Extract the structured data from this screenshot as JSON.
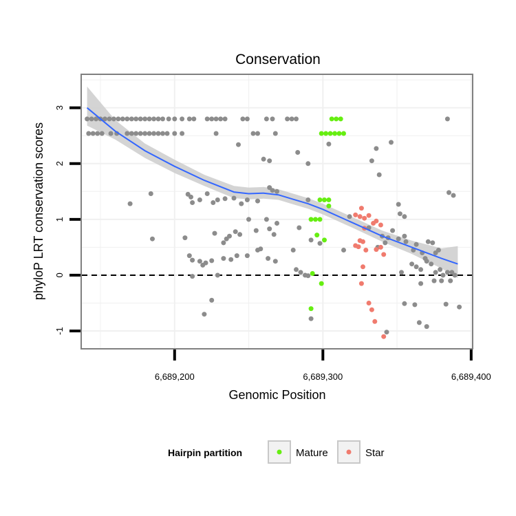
{
  "chart_data": {
    "type": "scatter",
    "title": "Conservation",
    "xlabel": "Genomic Position",
    "ylabel": "phyloP LRT conservation scores",
    "xlim": [
      6689137,
      6689401
    ],
    "ylim": [
      -1.32,
      3.6
    ],
    "x_ticks": [
      6689200,
      6689300,
      6689400
    ],
    "x_tick_labels": [
      "6,689,200",
      "6,689,300",
      "6,689,400"
    ],
    "y_ticks": [
      -1,
      0,
      1,
      2,
      3
    ],
    "y_tick_labels": [
      "-1",
      "0",
      "1",
      "2",
      "3"
    ],
    "reference_line": {
      "y": 0,
      "style": "dashed"
    },
    "grid": true,
    "legend": {
      "title": "Hairpin partition",
      "position": "bottom",
      "entries": [
        {
          "label": "Mature",
          "color": "#66ee11"
        },
        {
          "label": "Star",
          "color": "#f07b6e"
        }
      ]
    },
    "colors": {
      "other": "#8c8c8c",
      "Mature": "#66ee11",
      "Star": "#f07b6e",
      "smooth": "#3366ff",
      "ribbon": "#cccccc"
    },
    "smooth": {
      "x": [
        6689141,
        6689160,
        6689180,
        6689200,
        6689220,
        6689240,
        6689250,
        6689260,
        6689270,
        6689280,
        6689290,
        6689300,
        6689320,
        6689340,
        6689360,
        6689380,
        6689391
      ],
      "y": [
        3.0,
        2.58,
        2.23,
        1.95,
        1.7,
        1.49,
        1.46,
        1.47,
        1.44,
        1.36,
        1.28,
        1.18,
        0.94,
        0.7,
        0.5,
        0.3,
        0.2
      ],
      "lower": [
        2.68,
        2.43,
        2.1,
        1.83,
        1.6,
        1.38,
        1.36,
        1.37,
        1.35,
        1.27,
        1.19,
        1.09,
        0.85,
        0.6,
        0.38,
        0.12,
        -0.05
      ],
      "upper": [
        3.38,
        2.78,
        2.36,
        2.07,
        1.8,
        1.6,
        1.57,
        1.58,
        1.54,
        1.46,
        1.38,
        1.28,
        1.04,
        0.8,
        0.62,
        0.48,
        0.52
      ]
    },
    "series": [
      {
        "name": "",
        "points": [
          [
            6689141,
            2.8
          ],
          [
            6689144,
            2.8
          ],
          [
            6689147,
            2.8
          ],
          [
            6689150,
            2.8
          ],
          [
            6689153,
            2.8
          ],
          [
            6689156,
            2.8
          ],
          [
            6689159,
            2.8
          ],
          [
            6689162,
            2.8
          ],
          [
            6689165,
            2.8
          ],
          [
            6689168,
            2.8
          ],
          [
            6689171,
            2.8
          ],
          [
            6689174,
            2.8
          ],
          [
            6689177,
            2.8
          ],
          [
            6689180,
            2.8
          ],
          [
            6689183,
            2.8
          ],
          [
            6689186,
            2.8
          ],
          [
            6689189,
            2.8
          ],
          [
            6689192,
            2.8
          ],
          [
            6689196,
            2.8
          ],
          [
            6689200,
            2.8
          ],
          [
            6689205,
            2.8
          ],
          [
            6689210,
            2.8
          ],
          [
            6689213,
            2.8
          ],
          [
            6689222,
            2.8
          ],
          [
            6689225,
            2.8
          ],
          [
            6689228,
            2.8
          ],
          [
            6689231,
            2.8
          ],
          [
            6689234,
            2.8
          ],
          [
            6689246,
            2.8
          ],
          [
            6689249,
            2.8
          ],
          [
            6689262,
            2.8
          ],
          [
            6689266,
            2.8
          ],
          [
            6689276,
            2.8
          ],
          [
            6689279,
            2.8
          ],
          [
            6689282,
            2.8
          ],
          [
            6689142,
            2.54
          ],
          [
            6689145,
            2.54
          ],
          [
            6689148,
            2.54
          ],
          [
            6689151,
            2.54
          ],
          [
            6689157,
            2.54
          ],
          [
            6689161,
            2.54
          ],
          [
            6689168,
            2.54
          ],
          [
            6689171,
            2.54
          ],
          [
            6689174,
            2.54
          ],
          [
            6689177,
            2.54
          ],
          [
            6689180,
            2.54
          ],
          [
            6689183,
            2.54
          ],
          [
            6689186,
            2.54
          ],
          [
            6689189,
            2.54
          ],
          [
            6689192,
            2.54
          ],
          [
            6689195,
            2.54
          ],
          [
            6689200,
            2.54
          ],
          [
            6689205,
            2.54
          ],
          [
            6689228,
            2.54
          ],
          [
            6689253,
            2.54
          ],
          [
            6689256,
            2.54
          ],
          [
            6689268,
            2.54
          ],
          [
            6689243,
            2.34
          ],
          [
            6689260,
            2.08
          ],
          [
            6689264,
            2.05
          ],
          [
            6689283,
            2.2
          ],
          [
            6689290,
            2.0
          ],
          [
            6689304,
            2.35
          ],
          [
            6689333,
            2.05
          ],
          [
            6689336,
            2.27
          ],
          [
            6689346,
            2.38
          ],
          [
            6689338,
            1.8
          ],
          [
            6689384,
            2.8
          ],
          [
            6689170,
            1.28
          ],
          [
            6689184,
            1.46
          ],
          [
            6689209,
            1.45
          ],
          [
            6689212,
            1.3
          ],
          [
            6689211,
            1.4
          ],
          [
            6689217,
            1.35
          ],
          [
            6689222,
            1.46
          ],
          [
            6689226,
            1.3
          ],
          [
            6689229,
            1.35
          ],
          [
            6689234,
            1.37
          ],
          [
            6689240,
            1.38
          ],
          [
            6689245,
            1.28
          ],
          [
            6689249,
            1.35
          ],
          [
            6689256,
            1.33
          ],
          [
            6689264,
            1.57
          ],
          [
            6689269,
            1.5
          ],
          [
            6689266,
            1.52
          ],
          [
            6689290,
            1.35
          ],
          [
            6689318,
            1.05
          ],
          [
            6689351,
            1.27
          ],
          [
            6689352,
            1.1
          ],
          [
            6689355,
            1.05
          ],
          [
            6689385,
            1.48
          ],
          [
            6689388,
            1.43
          ],
          [
            6689185,
            0.65
          ],
          [
            6689207,
            0.67
          ],
          [
            6689227,
            0.75
          ],
          [
            6689235,
            0.65
          ],
          [
            6689237,
            0.7
          ],
          [
            6689233,
            0.58
          ],
          [
            6689241,
            0.78
          ],
          [
            6689244,
            0.73
          ],
          [
            6689250,
            1.0
          ],
          [
            6689255,
            0.8
          ],
          [
            6689258,
            0.47
          ],
          [
            6689262,
            1.0
          ],
          [
            6689264,
            0.83
          ],
          [
            6689267,
            0.73
          ],
          [
            6689269,
            0.93
          ],
          [
            6689280,
            0.45
          ],
          [
            6689284,
            0.85
          ],
          [
            6689292,
            0.63
          ],
          [
            6689298,
            0.57
          ],
          [
            6689314,
            0.45
          ],
          [
            6689331,
            0.85
          ],
          [
            6689337,
            0.5
          ],
          [
            6689340,
            0.7
          ],
          [
            6689342,
            0.58
          ],
          [
            6689344,
            0.67
          ],
          [
            6689347,
            0.8
          ],
          [
            6689351,
            0.65
          ],
          [
            6689355,
            0.7
          ],
          [
            6689356,
            0.6
          ],
          [
            6689361,
            0.45
          ],
          [
            6689363,
            0.55
          ],
          [
            6689367,
            0.4
          ],
          [
            6689369,
            0.3
          ],
          [
            6689371,
            0.6
          ],
          [
            6689374,
            0.58
          ],
          [
            6689376,
            0.4
          ],
          [
            6689378,
            0.45
          ],
          [
            6689210,
            0.35
          ],
          [
            6689212,
            0.27
          ],
          [
            6689217,
            0.25
          ],
          [
            6689219,
            0.18
          ],
          [
            6689221,
            0.22
          ],
          [
            6689225,
            0.26
          ],
          [
            6689233,
            0.3
          ],
          [
            6689238,
            0.28
          ],
          [
            6689242,
            0.35
          ],
          [
            6689249,
            0.35
          ],
          [
            6689256,
            0.45
          ],
          [
            6689263,
            0.3
          ],
          [
            6689268,
            0.25
          ],
          [
            6689282,
            0.1
          ],
          [
            6689285,
            0.05
          ],
          [
            6689353,
            0.05
          ],
          [
            6689360,
            0.2
          ],
          [
            6689363,
            0.15
          ],
          [
            6689366,
            0.1
          ],
          [
            6689370,
            0.25
          ],
          [
            6689373,
            0.2
          ],
          [
            6689376,
            0.05
          ],
          [
            6689379,
            0.1
          ],
          [
            6689381,
            0.0
          ],
          [
            6689384,
            0.05
          ],
          [
            6689387,
            0.05
          ],
          [
            6689212,
            -0.02
          ],
          [
            6689229,
            0.0
          ],
          [
            6689288,
            0.0
          ],
          [
            6689290,
            -0.01
          ],
          [
            6689375,
            -0.1
          ],
          [
            6689380,
            -0.1
          ],
          [
            6689386,
            -0.1
          ],
          [
            6689389,
            0.0
          ],
          [
            6689366,
            -0.15
          ],
          [
            6689225,
            -0.45
          ],
          [
            6689220,
            -0.7
          ],
          [
            6689292,
            -0.78
          ],
          [
            6689355,
            -0.51
          ],
          [
            6689362,
            -0.53
          ],
          [
            6689383,
            -0.52
          ],
          [
            6689392,
            -0.57
          ],
          [
            6689365,
            -0.85
          ],
          [
            6689370,
            -0.92
          ],
          [
            6689343,
            -1.02
          ]
        ]
      },
      {
        "name": "Mature",
        "points": [
          [
            6689306,
            2.8
          ],
          [
            6689309,
            2.8
          ],
          [
            6689312,
            2.8
          ],
          [
            6689299,
            2.54
          ],
          [
            6689302,
            2.54
          ],
          [
            6689305,
            2.54
          ],
          [
            6689308,
            2.54
          ],
          [
            6689311,
            2.54
          ],
          [
            6689314,
            2.54
          ],
          [
            6689298,
            1.35
          ],
          [
            6689301,
            1.35
          ],
          [
            6689304,
            1.35
          ],
          [
            6689304,
            1.24
          ],
          [
            6689292,
            1.0
          ],
          [
            6689295,
            1.0
          ],
          [
            6689298,
            1.0
          ],
          [
            6689296,
            0.72
          ],
          [
            6689301,
            0.63
          ],
          [
            6689293,
            0.03
          ],
          [
            6689299,
            -0.15
          ],
          [
            6689292,
            -0.6
          ]
        ]
      },
      {
        "name": "Star",
        "points": [
          [
            6689326,
            1.2
          ],
          [
            6689322,
            1.08
          ],
          [
            6689325,
            1.05
          ],
          [
            6689328,
            1.02
          ],
          [
            6689331,
            1.07
          ],
          [
            6689334,
            0.93
          ],
          [
            6689336,
            0.97
          ],
          [
            6689339,
            0.9
          ],
          [
            6689328,
            0.84
          ],
          [
            6689327,
            0.6
          ],
          [
            6689322,
            0.53
          ],
          [
            6689324,
            0.51
          ],
          [
            6689325,
            0.62
          ],
          [
            6689329,
            0.45
          ],
          [
            6689336,
            0.46
          ],
          [
            6689339,
            0.5
          ],
          [
            6689341,
            0.37
          ],
          [
            6689327,
            0.15
          ],
          [
            6689326,
            -0.15
          ],
          [
            6689331,
            -0.5
          ],
          [
            6689333,
            -0.62
          ],
          [
            6689335,
            -0.83
          ],
          [
            6689341,
            -1.1
          ]
        ]
      }
    ]
  }
}
